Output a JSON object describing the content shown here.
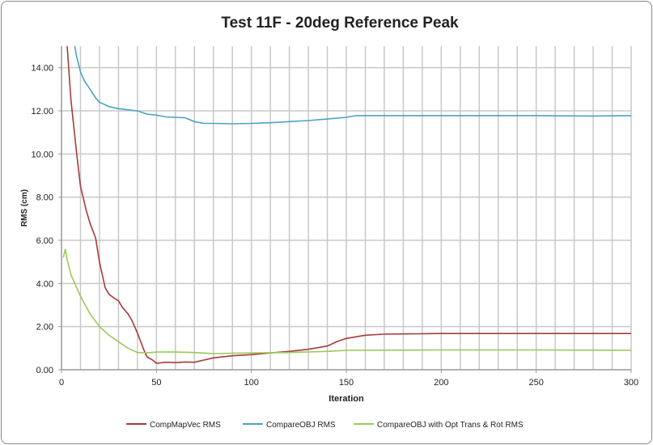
{
  "chart_data": {
    "type": "line",
    "title": "Test 11F - 20deg Reference Peak",
    "xlabel": "Iteration",
    "ylabel": "RMS (cm)",
    "xlim": [
      0,
      300
    ],
    "ylim": [
      0,
      15
    ],
    "xticks": [
      0,
      50,
      100,
      150,
      200,
      250,
      300
    ],
    "yticks": [
      "0.00",
      "2.00",
      "4.00",
      "6.00",
      "8.00",
      "10.00",
      "12.00",
      "14.00"
    ],
    "grid": true,
    "legend_position": "bottom",
    "series": [
      {
        "name": "CompMapVec RMS",
        "color": "#a83a3a",
        "x": [
          3,
          5,
          8,
          10,
          13,
          15,
          18,
          20,
          23,
          25,
          28,
          30,
          32,
          35,
          37,
          40,
          43,
          45,
          48,
          50,
          55,
          60,
          65,
          70,
          75,
          80,
          90,
          100,
          110,
          120,
          130,
          140,
          145,
          150,
          160,
          170,
          200,
          250,
          300
        ],
        "y": [
          15,
          12.5,
          10,
          8.5,
          7.4,
          6.8,
          6.1,
          5.0,
          3.8,
          3.5,
          3.3,
          3.2,
          2.9,
          2.6,
          2.3,
          1.7,
          1.0,
          0.6,
          0.45,
          0.3,
          0.35,
          0.33,
          0.36,
          0.35,
          0.45,
          0.55,
          0.65,
          0.7,
          0.78,
          0.85,
          0.95,
          1.1,
          1.3,
          1.45,
          1.6,
          1.65,
          1.68,
          1.68,
          1.68
        ]
      },
      {
        "name": "CompareOBJ RMS",
        "color": "#4ba3bf",
        "x": [
          7,
          8,
          10,
          12,
          15,
          18,
          20,
          25,
          30,
          35,
          40,
          45,
          50,
          55,
          60,
          65,
          70,
          75,
          80,
          90,
          100,
          110,
          120,
          130,
          140,
          150,
          155,
          200,
          250,
          280,
          300
        ],
        "y": [
          15,
          14.5,
          13.8,
          13.4,
          13.0,
          12.6,
          12.4,
          12.2,
          12.1,
          12.05,
          12.0,
          11.85,
          11.8,
          11.72,
          11.7,
          11.68,
          11.5,
          11.42,
          11.42,
          11.4,
          11.42,
          11.45,
          11.5,
          11.55,
          11.62,
          11.7,
          11.78,
          11.78,
          11.78,
          11.76,
          11.78
        ]
      },
      {
        "name": "CompareOBJ with Opt Trans & Rot RMS",
        "color": "#9bc85a",
        "x": [
          1,
          2,
          3,
          5,
          8,
          10,
          15,
          20,
          25,
          30,
          35,
          40,
          45,
          50,
          60,
          70,
          80,
          100,
          120,
          140,
          150,
          200,
          250,
          300
        ],
        "y": [
          5.2,
          5.6,
          5.1,
          4.4,
          3.8,
          3.4,
          2.6,
          2.0,
          1.6,
          1.3,
          1.0,
          0.8,
          0.78,
          0.82,
          0.82,
          0.8,
          0.75,
          0.78,
          0.8,
          0.85,
          0.9,
          0.92,
          0.92,
          0.9
        ]
      }
    ]
  }
}
